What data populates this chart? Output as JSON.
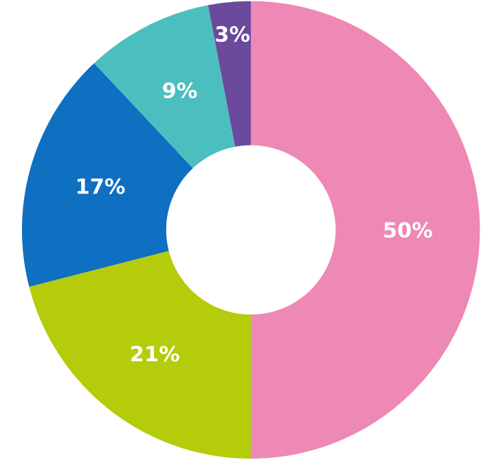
{
  "chart_data": {
    "type": "donut",
    "categories": [
      null,
      null,
      null,
      null,
      null
    ],
    "values": [
      50,
      21,
      17,
      9,
      3
    ],
    "colors": [
      "#ee88b4",
      "#b4cc0a",
      "#0f6fc0",
      "#4bbfbf",
      "#6b4a9e"
    ],
    "value_labels": [
      "50%",
      "21%",
      "17%",
      "9%",
      "3%"
    ]
  }
}
